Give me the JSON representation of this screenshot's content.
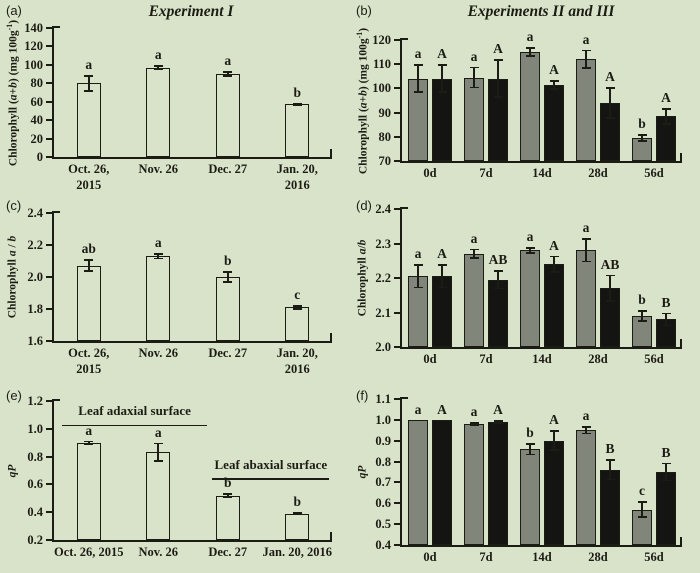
{
  "figure": {
    "background_color": "#d9e3c9",
    "ink_color": "#1b1d15",
    "bar_color_open": "none",
    "bar_color_gray": "#80867a",
    "bar_color_black": "#141412",
    "left_column_title": "Experiment I",
    "right_column_title": "Experiments II and III"
  },
  "chart_data": [
    {
      "id": "a",
      "panel_label": "(a)",
      "title": "Experiment I",
      "type": "bar",
      "ylabel_html": "Chlorophyll (<i>a</i>+<i>b</i>) (mg 100g<sup>-1</sup>)",
      "ylim": [
        0,
        140
      ],
      "ystep": 20,
      "ydecimals": 0,
      "grid": false,
      "categories": [
        "Oct. 26,\n2015",
        "Nov. 26",
        "Dec. 27",
        "Jan. 20,\n2016"
      ],
      "series": [
        {
          "name": "open",
          "fill": "none",
          "values": [
            80,
            97,
            90,
            57
          ],
          "errors": [
            9,
            2.5,
            3,
            1.5
          ],
          "letters": [
            "a",
            "a",
            "a",
            "b"
          ]
        }
      ]
    },
    {
      "id": "b",
      "panel_label": "(b)",
      "title": "Experiments II and III",
      "type": "bar",
      "ylabel_html": "Chlorophyll (<i>a</i>+<i>b</i>) (mg 100g<sup>-1</sup>)",
      "ylim": [
        70,
        120
      ],
      "ystep": 10,
      "ydecimals": 0,
      "grid": false,
      "categories": [
        "0d",
        "7d",
        "14d",
        "28d",
        "56d"
      ],
      "series": [
        {
          "name": "gray",
          "fill": "#80867a",
          "values": [
            104,
            104.5,
            115,
            112,
            79.5
          ],
          "errors": [
            6,
            4.5,
            2,
            4,
            1.5
          ],
          "letters": [
            "a",
            "a",
            "a",
            "a",
            "b"
          ]
        },
        {
          "name": "black",
          "fill": "#141412",
          "values": [
            104,
            104,
            101.5,
            94,
            88.5
          ],
          "errors": [
            6,
            8,
            2,
            6.5,
            3.5
          ],
          "letters": [
            "A",
            "A",
            "A",
            "A",
            "A"
          ]
        }
      ]
    },
    {
      "id": "c",
      "panel_label": "(c)",
      "type": "bar",
      "ylabel_html": "Chlorophyll <i>a</i> / <i>b</i>",
      "ylim": [
        1.6,
        2.4
      ],
      "ystep": 0.2,
      "ydecimals": 1,
      "grid": false,
      "categories": [
        "Oct. 26,\n2015",
        "Nov. 26",
        "Dec. 27",
        "Jan. 20,\n2016"
      ],
      "series": [
        {
          "name": "open",
          "fill": "none",
          "values": [
            2.07,
            2.13,
            2.0,
            1.81
          ],
          "errors": [
            0.04,
            0.02,
            0.035,
            0.015
          ],
          "letters": [
            "ab",
            "a",
            "b",
            "c"
          ]
        }
      ]
    },
    {
      "id": "d",
      "panel_label": "(d)",
      "type": "bar",
      "ylabel_html": "Chlorophyll <i>a</i>/<i>b</i>",
      "ylim": [
        2.0,
        2.4
      ],
      "ystep": 0.1,
      "ydecimals": 1,
      "grid": false,
      "categories": [
        "0d",
        "7d",
        "14d",
        "28d",
        "56d"
      ],
      "series": [
        {
          "name": "gray",
          "fill": "#80867a",
          "values": [
            2.205,
            2.27,
            2.28,
            2.28,
            2.09
          ],
          "errors": [
            0.035,
            0.015,
            0.01,
            0.035,
            0.018
          ],
          "letters": [
            "a",
            "a",
            "a",
            "a",
            "b"
          ]
        },
        {
          "name": "black",
          "fill": "#141412",
          "values": [
            2.205,
            2.195,
            2.24,
            2.17,
            2.08
          ],
          "errors": [
            0.035,
            0.028,
            0.025,
            0.04,
            0.02
          ],
          "letters": [
            "A",
            "AB",
            "A",
            "AB",
            "B"
          ]
        }
      ]
    },
    {
      "id": "e",
      "panel_label": "(e)",
      "type": "bar",
      "ylabel_html": "<i>qP</i>",
      "ylim": [
        0.2,
        1.2
      ],
      "ystep": 0.2,
      "ydecimals": 1,
      "grid": false,
      "categories": [
        "Oct. 26, 2015",
        "Nov. 26",
        "Dec. 27",
        "Jan. 20, 2016"
      ],
      "series": [
        {
          "name": "open",
          "fill": "none",
          "values": [
            0.9,
            0.83,
            0.52,
            0.39
          ],
          "errors": [
            0.015,
            0.07,
            0.02,
            0.01
          ],
          "letters": [
            "a",
            "a",
            "b",
            "b"
          ]
        }
      ],
      "annotations": [
        {
          "text": "Leaf adaxial surface",
          "x_from": 0.03,
          "x_to": 0.55,
          "line_y": 1.03,
          "text_y": 1.175
        },
        {
          "text": "Leaf abaxial surface",
          "x_from": 0.57,
          "x_to": 0.99,
          "line_y": 0.645,
          "text_y": 0.79
        }
      ]
    },
    {
      "id": "f",
      "panel_label": "(f)",
      "type": "bar",
      "ylabel_html": "<i>qP</i>",
      "ylim": [
        0.4,
        1.1
      ],
      "ystep": 0.1,
      "ydecimals": 1,
      "grid": false,
      "categories": [
        "0d",
        "7d",
        "14d",
        "28d",
        "56d"
      ],
      "series": [
        {
          "name": "gray",
          "fill": "#80867a",
          "values": [
            1.0,
            0.98,
            0.86,
            0.95,
            0.57
          ],
          "errors": [
            0,
            0.01,
            0.03,
            0.02,
            0.04
          ],
          "letters": [
            "a",
            "a",
            "b",
            "a",
            "c"
          ]
        },
        {
          "name": "black",
          "fill": "#141412",
          "values": [
            1.0,
            0.99,
            0.9,
            0.76,
            0.75
          ],
          "errors": [
            0,
            0.01,
            0.05,
            0.05,
            0.045
          ],
          "letters": [
            "A",
            "A",
            "A",
            "B",
            "B"
          ]
        }
      ]
    }
  ]
}
